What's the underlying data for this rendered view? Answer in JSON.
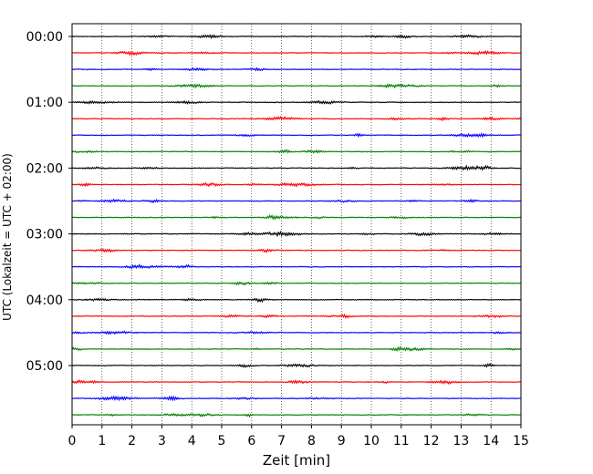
{
  "chart_data": {
    "type": "line",
    "subtype": "helicorder",
    "xlabel": "Zeit  [min]",
    "ylabel": "UTC (Lokalzeit = UTC + 02:00)",
    "xlim": [
      0,
      15
    ],
    "x_ticks": [
      0,
      1,
      2,
      3,
      4,
      5,
      6,
      7,
      8,
      9,
      10,
      11,
      12,
      13,
      14,
      15
    ],
    "y_ticks": [
      "00:00",
      "01:00",
      "02:00",
      "03:00",
      "04:00",
      "05:00"
    ],
    "grid": "vertical dotted at each minute",
    "trace_interval_minutes": 15,
    "trace_count": 24,
    "trace_start_times": [
      "00:00",
      "00:15",
      "00:30",
      "00:45",
      "01:00",
      "01:15",
      "01:30",
      "01:45",
      "02:00",
      "02:15",
      "02:30",
      "02:45",
      "03:00",
      "03:15",
      "03:30",
      "03:45",
      "04:00",
      "04:15",
      "04:30",
      "04:45",
      "05:00",
      "05:15",
      "05:30",
      "05:45"
    ],
    "trace_colors": [
      "#000000",
      "#ff0000",
      "#0000ff",
      "#008000"
    ]
  }
}
